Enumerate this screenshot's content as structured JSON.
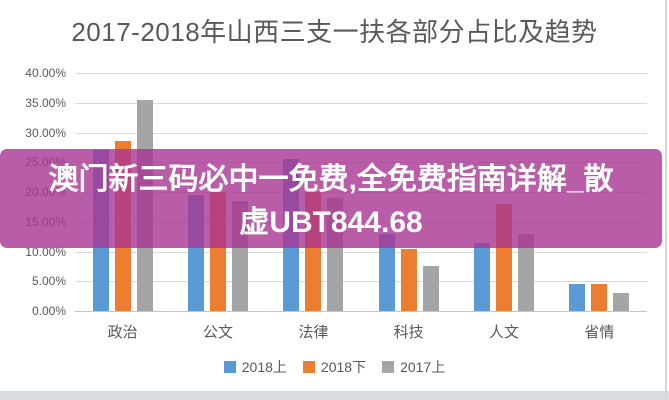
{
  "title": "2017-2018年山西三支一扶各部分占比及趋势",
  "overlay": {
    "text_line1": "澳门新三码必中一免费,全免费指南详解_散",
    "text_line2": "虚UBT844.68",
    "background_rgba": "rgba(168,52,146,0.8)",
    "base_color": "#A83492",
    "text_color": "#FFFFFF"
  },
  "colors": {
    "series_blue": "#5B9BD5",
    "series_orange": "#ED7D31",
    "series_gray": "#A5A5A5",
    "axis_text": "#595959",
    "gridline": "#D9D9D9"
  },
  "chart_data": {
    "type": "bar",
    "title": "2017-2018年山西三支一扶各部分占比及趋势",
    "categories": [
      "政治",
      "公文",
      "法律",
      "科技",
      "人文",
      "省情"
    ],
    "series": [
      {
        "name": "2018上",
        "color": "#5B9BD5",
        "values": [
          27.0,
          19.5,
          25.5,
          13.0,
          11.5,
          4.5
        ]
      },
      {
        "name": "2018下",
        "color": "#ED7D31",
        "values": [
          28.5,
          20.0,
          20.0,
          10.5,
          18.0,
          4.5
        ]
      },
      {
        "name": "2017上",
        "color": "#A5A5A5",
        "values": [
          35.5,
          18.5,
          19.0,
          7.5,
          13.0,
          3.0
        ]
      }
    ],
    "xlabel": "",
    "ylabel": "",
    "ylim": [
      0,
      40
    ],
    "ytick_step": 5,
    "yticks": [
      "0.00%",
      "5.00%",
      "10.00%",
      "15.00%",
      "20.00%",
      "25.00%",
      "30.00%",
      "35.00%",
      "40.00%"
    ],
    "grid": true,
    "legend_position": "bottom"
  }
}
